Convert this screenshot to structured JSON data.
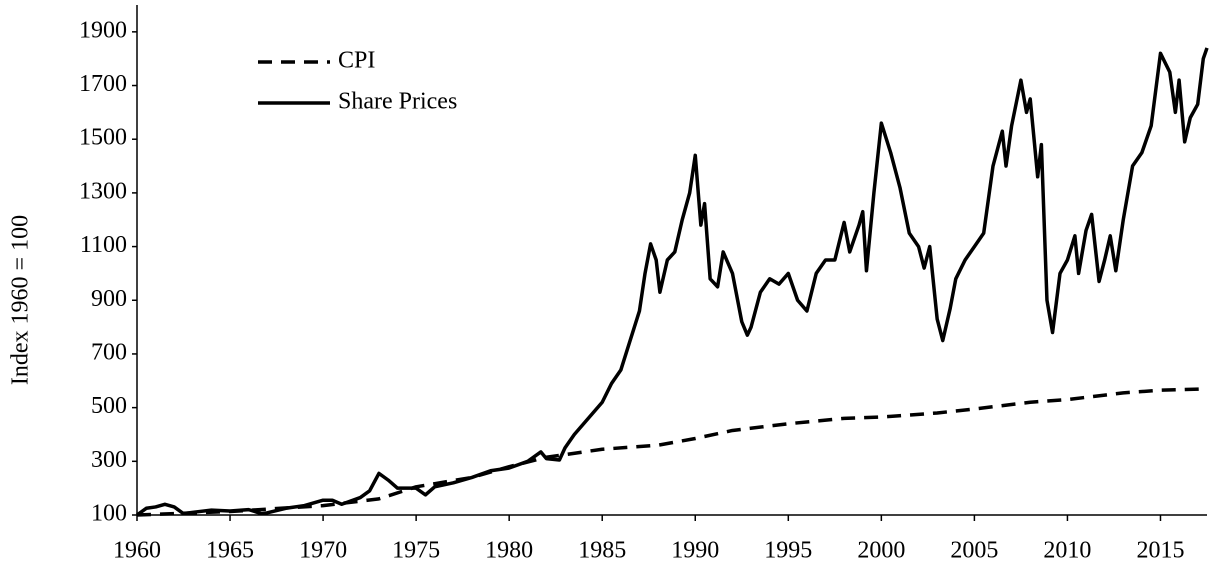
{
  "chart_data": {
    "type": "line",
    "y_label": "Index 1960 = 100",
    "xlim": [
      1960,
      2017.5
    ],
    "ylim": [
      100,
      2000
    ],
    "xticks": [
      1960,
      1965,
      1970,
      1975,
      1980,
      1985,
      1990,
      1995,
      2000,
      2005,
      2010,
      2015
    ],
    "yticks": [
      100,
      300,
      500,
      700,
      900,
      1100,
      1300,
      1500,
      1700,
      1900
    ],
    "legend": "upper left",
    "series": [
      {
        "name": "CPI",
        "color": "#000000",
        "dash": "dashed",
        "x": [
          1960,
          1965,
          1970,
          1973,
          1975,
          1978,
          1980,
          1982,
          1985,
          1988,
          1990,
          1992,
          1995,
          1998,
          2000,
          2003,
          2005,
          2008,
          2010,
          2013,
          2015,
          2017.5
        ],
        "values": [
          100,
          113,
          135,
          160,
          205,
          240,
          280,
          315,
          345,
          360,
          385,
          415,
          440,
          460,
          465,
          480,
          495,
          520,
          530,
          555,
          565,
          570
        ]
      },
      {
        "name": "Share Prices",
        "color": "#000000",
        "dash": "solid",
        "x": [
          1960,
          1960.5,
          1961,
          1961.5,
          1962,
          1962.5,
          1963,
          1964,
          1965,
          1966,
          1966.7,
          1967,
          1968,
          1969,
          1970,
          1970.5,
          1971,
          1972,
          1972.5,
          1973,
          1973.5,
          1974,
          1975,
          1975.5,
          1976,
          1977,
          1978,
          1979,
          1980,
          1981,
          1981.7,
          1982,
          1982.7,
          1983,
          1983.5,
          1984,
          1984.5,
          1985,
          1985.5,
          1986,
          1986.5,
          1987,
          1987.3,
          1987.6,
          1987.9,
          1988.1,
          1988.5,
          1988.9,
          1989.3,
          1989.7,
          1990,
          1990.3,
          1990.5,
          1990.8,
          1991.2,
          1991.5,
          1992,
          1992.5,
          1992.8,
          1993,
          1993.5,
          1994,
          1994.5,
          1995,
          1995.5,
          1996,
          1996.5,
          1997,
          1997.5,
          1998,
          1998.3,
          1998.8,
          1999,
          1999.2,
          1999.6,
          2000,
          2000.5,
          2001,
          2001.5,
          2002,
          2002.3,
          2002.6,
          2003,
          2003.3,
          2003.7,
          2004,
          2004.5,
          2005,
          2005.5,
          2006,
          2006.5,
          2006.7,
          2007,
          2007.5,
          2007.8,
          2008,
          2008.4,
          2008.6,
          2008.9,
          2009.2,
          2009.6,
          2010,
          2010.4,
          2010.6,
          2011,
          2011.3,
          2011.7,
          2012,
          2012.3,
          2012.6,
          2013,
          2013.5,
          2014,
          2014.5,
          2015,
          2015.5,
          2015.8,
          2016,
          2016.3,
          2016.6,
          2017,
          2017.3,
          2017.5
        ],
        "values": [
          100,
          125,
          130,
          140,
          130,
          105,
          110,
          118,
          115,
          120,
          105,
          108,
          125,
          135,
          155,
          155,
          140,
          165,
          190,
          255,
          230,
          200,
          200,
          175,
          205,
          220,
          240,
          265,
          275,
          300,
          335,
          310,
          305,
          350,
          400,
          440,
          480,
          520,
          590,
          640,
          750,
          860,
          1000,
          1110,
          1050,
          930,
          1050,
          1080,
          1200,
          1300,
          1440,
          1180,
          1260,
          980,
          950,
          1080,
          1000,
          820,
          770,
          800,
          930,
          980,
          960,
          1000,
          900,
          860,
          1000,
          1050,
          1050,
          1190,
          1080,
          1180,
          1230,
          1010,
          1300,
          1560,
          1450,
          1320,
          1150,
          1100,
          1020,
          1100,
          830,
          750,
          870,
          980,
          1050,
          1100,
          1150,
          1400,
          1530,
          1400,
          1550,
          1720,
          1600,
          1650,
          1360,
          1480,
          900,
          780,
          1000,
          1050,
          1140,
          1000,
          1160,
          1220,
          970,
          1050,
          1140,
          1010,
          1200,
          1400,
          1450,
          1550,
          1820,
          1750,
          1600,
          1720,
          1490,
          1580,
          1630,
          1800,
          1840
        ]
      }
    ]
  }
}
